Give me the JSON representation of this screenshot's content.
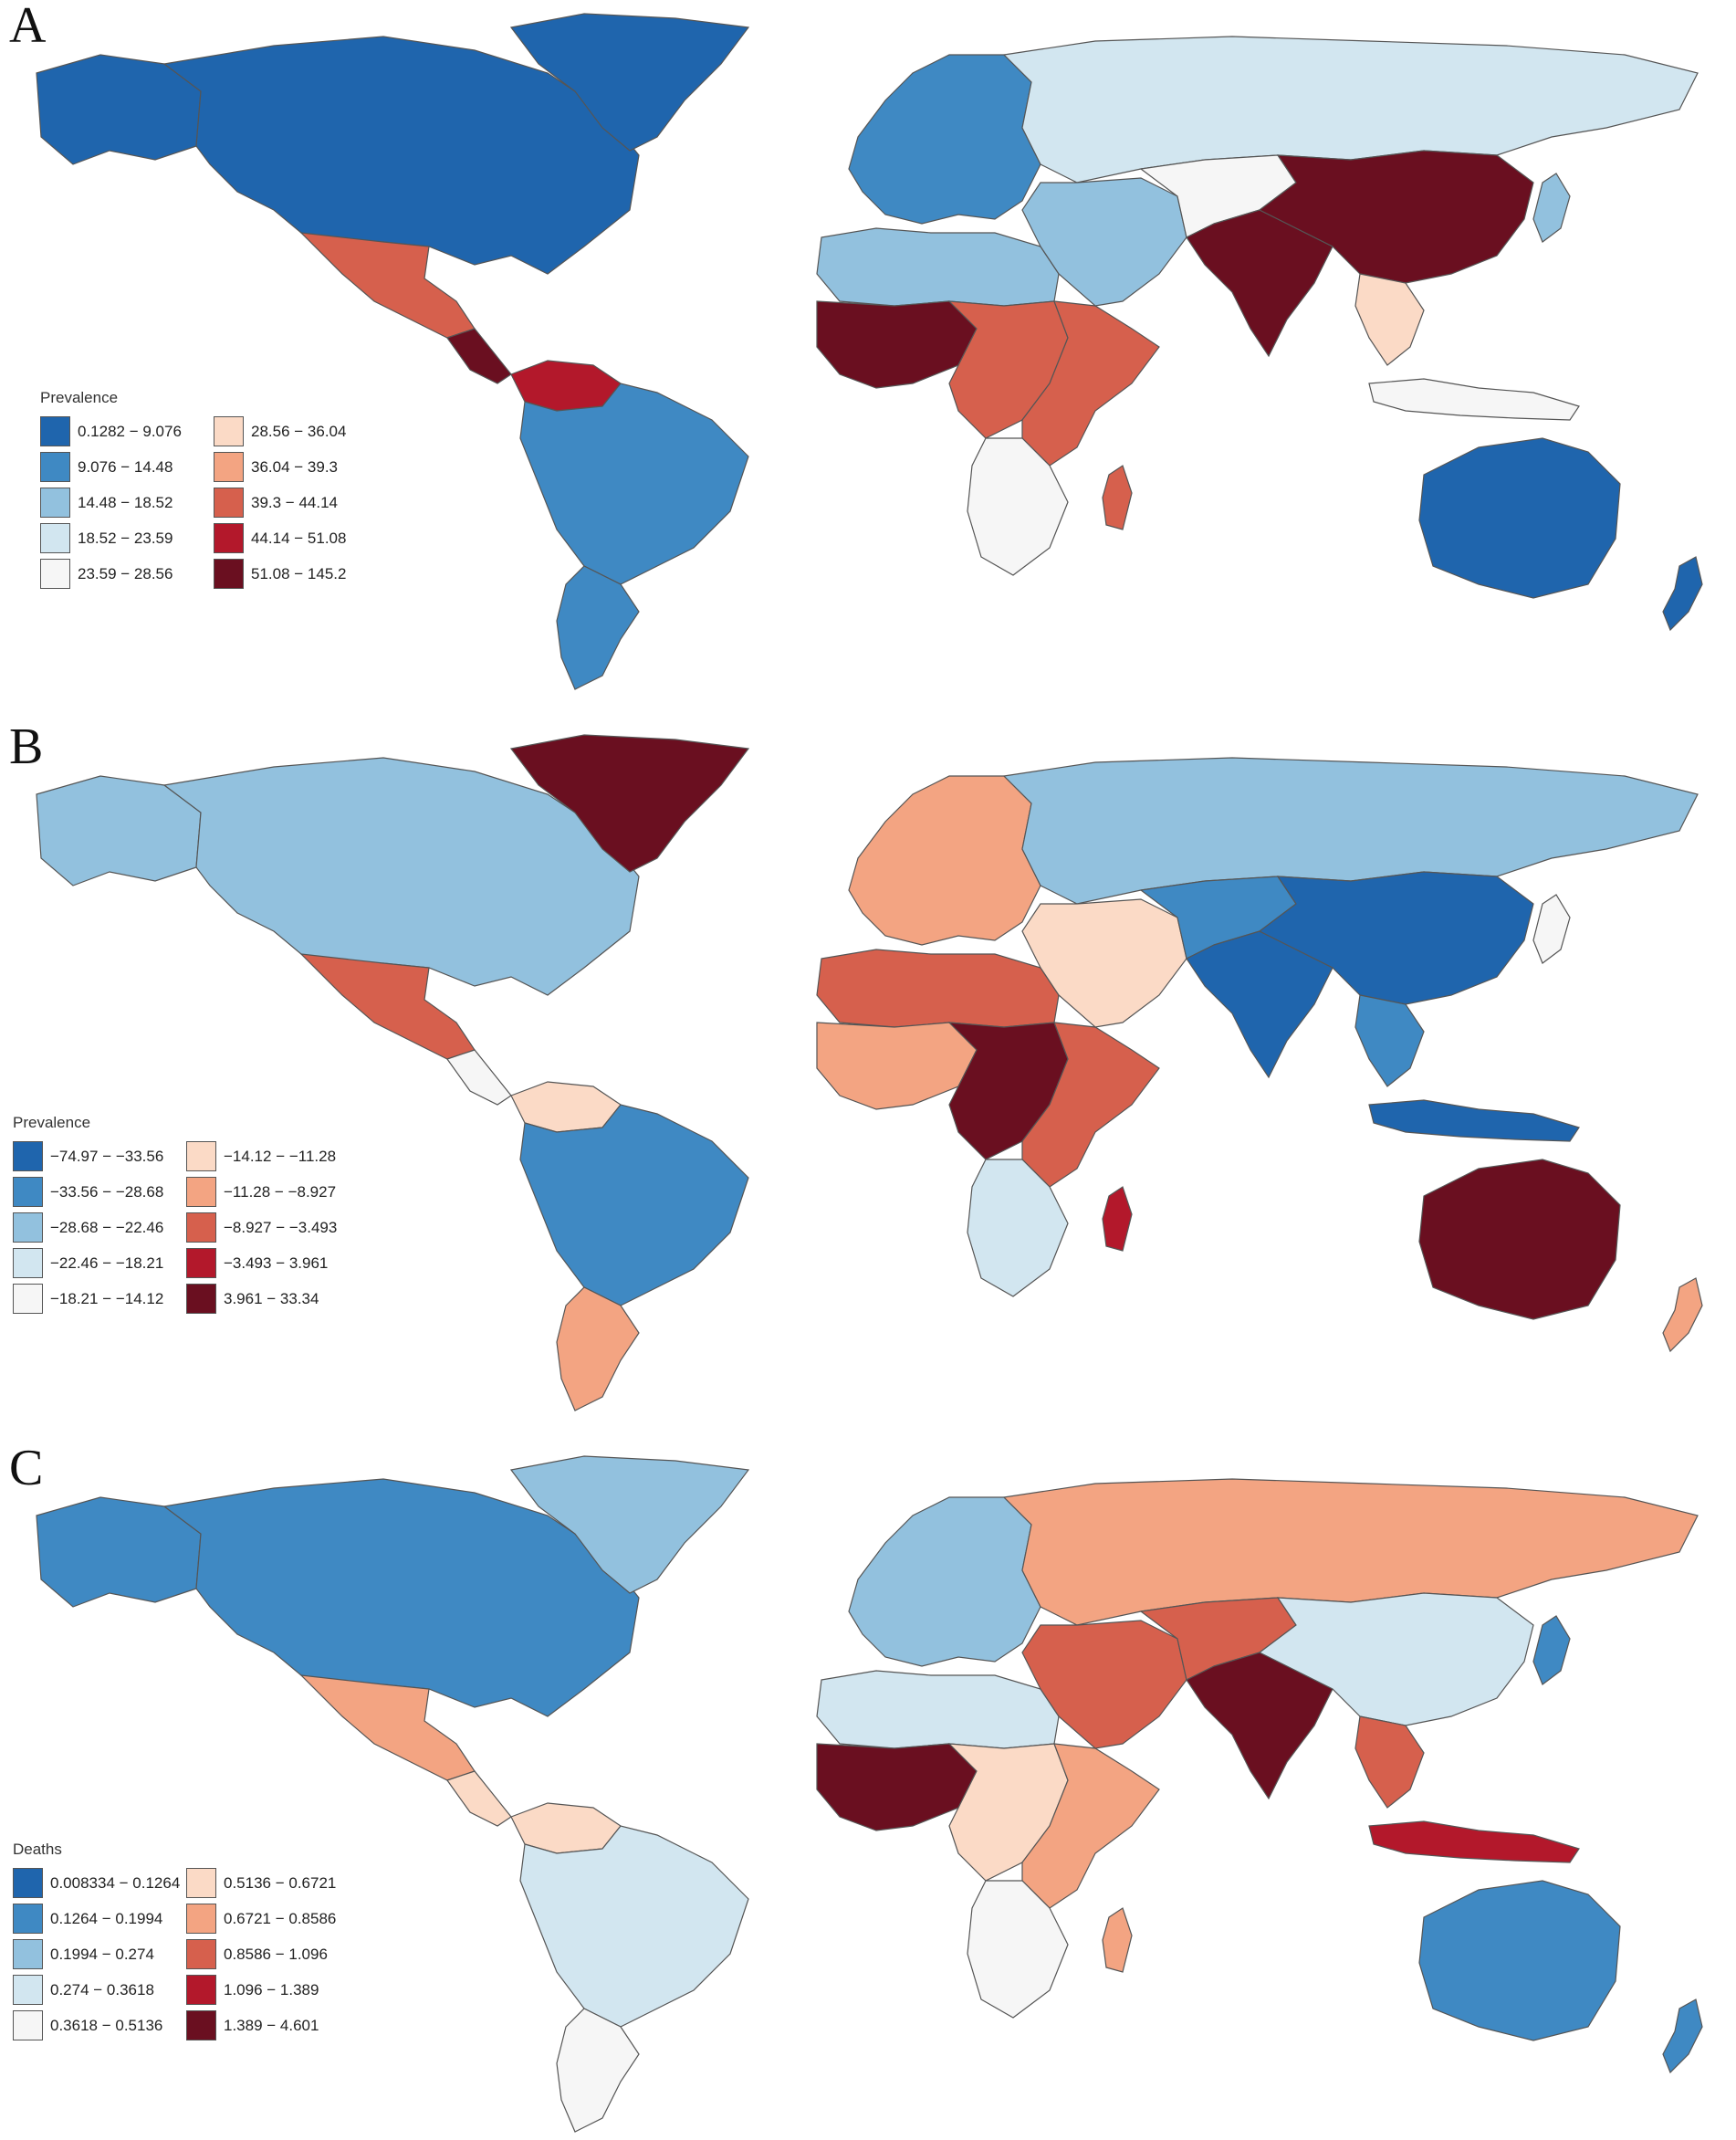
{
  "panels": [
    {
      "letter": "A",
      "legend": {
        "title": "Prevalence",
        "items": [
          {
            "label": "0.1282 − 9.076",
            "color": "#1f65ad"
          },
          {
            "label": "9.076 − 14.48",
            "color": "#3f89c3"
          },
          {
            "label": "14.48 − 18.52",
            "color": "#92c1de"
          },
          {
            "label": "18.52 − 23.59",
            "color": "#d2e6f0"
          },
          {
            "label": "23.59 − 28.56",
            "color": "#f6f6f6"
          },
          {
            "label": "28.56 − 36.04",
            "color": "#fbdac6"
          },
          {
            "label": "36.04 − 39.3",
            "color": "#f3a482"
          },
          {
            "label": "39.3 − 44.14",
            "color": "#d6604d"
          },
          {
            "label": "44.14 − 51.08",
            "color": "#b3182b"
          },
          {
            "label": "51.08 − 145.2",
            "color": "#6a0f20"
          }
        ]
      }
    },
    {
      "letter": "B",
      "legend": {
        "title": "Prevalence",
        "items": [
          {
            "label": "−74.97 − −33.56",
            "color": "#1f65ad"
          },
          {
            "label": "−33.56 − −28.68",
            "color": "#3f89c3"
          },
          {
            "label": "−28.68 − −22.46",
            "color": "#92c1de"
          },
          {
            "label": "−22.46 − −18.21",
            "color": "#d2e6f0"
          },
          {
            "label": "−18.21 − −14.12",
            "color": "#f6f6f6"
          },
          {
            "label": "−14.12 − −11.28",
            "color": "#fbdac6"
          },
          {
            "label": "−11.28 − −8.927",
            "color": "#f3a482"
          },
          {
            "label": "−8.927 − −3.493",
            "color": "#d6604d"
          },
          {
            "label": "−3.493 − 3.961",
            "color": "#b3182b"
          },
          {
            "label": "3.961 − 33.34",
            "color": "#6a0f20"
          }
        ]
      }
    },
    {
      "letter": "C",
      "legend": {
        "title": "Deaths",
        "items": [
          {
            "label": "0.008334 − 0.1264",
            "color": "#1f65ad"
          },
          {
            "label": "0.1264 − 0.1994",
            "color": "#3f89c3"
          },
          {
            "label": "0.1994 − 0.274",
            "color": "#92c1de"
          },
          {
            "label": "0.274 − 0.3618",
            "color": "#d2e6f0"
          },
          {
            "label": "0.3618 − 0.5136",
            "color": "#f6f6f6"
          },
          {
            "label": "0.5136 − 0.6721",
            "color": "#fbdac6"
          },
          {
            "label": "0.6721 − 0.8586",
            "color": "#f3a482"
          },
          {
            "label": "0.8586 − 1.096",
            "color": "#d6604d"
          },
          {
            "label": "1.096 − 1.389",
            "color": "#b3182b"
          },
          {
            "label": "1.389 − 4.601",
            "color": "#6a0f20"
          }
        ]
      }
    }
  ],
  "maps": {
    "A": {
      "north_america": 0,
      "greenland": 0,
      "mexico": 7,
      "central_america": 9,
      "venezuela": 8,
      "south_america": 1,
      "southern_cone": 1,
      "europe": 1,
      "russia": 3,
      "north_africa": 2,
      "west_africa": 9,
      "central_africa": 7,
      "east_africa": 7,
      "southern_africa": 4,
      "madagascar": 7,
      "middle_east": 2,
      "central_asia": 4,
      "india": 9,
      "china": 9,
      "southeast_asia": 5,
      "indonesia": 4,
      "australia": 0,
      "new_zealand": 0,
      "japan": 2
    },
    "B": {
      "north_america": 2,
      "alaska": 2,
      "greenland": 9,
      "mexico": 7,
      "central_america": 4,
      "venezuela": 5,
      "south_america": 1,
      "southern_cone": 6,
      "europe": 6,
      "russia": 2,
      "north_africa": 7,
      "west_africa": 6,
      "central_africa": 9,
      "east_africa": 7,
      "southern_africa": 3,
      "madagascar": 8,
      "middle_east": 5,
      "central_asia": 1,
      "india": 0,
      "china": 0,
      "southeast_asia": 1,
      "indonesia": 0,
      "australia": 9,
      "new_zealand": 6,
      "japan": 4
    },
    "C": {
      "north_america": 1,
      "alaska": 1,
      "greenland": 2,
      "mexico": 6,
      "central_america": 5,
      "venezuela": 5,
      "south_america": 3,
      "southern_cone": 4,
      "europe": 2,
      "russia": 6,
      "north_africa": 3,
      "west_africa": 9,
      "central_africa": 5,
      "east_africa": 6,
      "southern_africa": 4,
      "madagascar": 6,
      "middle_east": 7,
      "central_asia": 7,
      "india": 9,
      "china": 3,
      "southeast_asia": 7,
      "indonesia": 8,
      "australia": 1,
      "new_zealand": 1,
      "japan": 1
    }
  }
}
